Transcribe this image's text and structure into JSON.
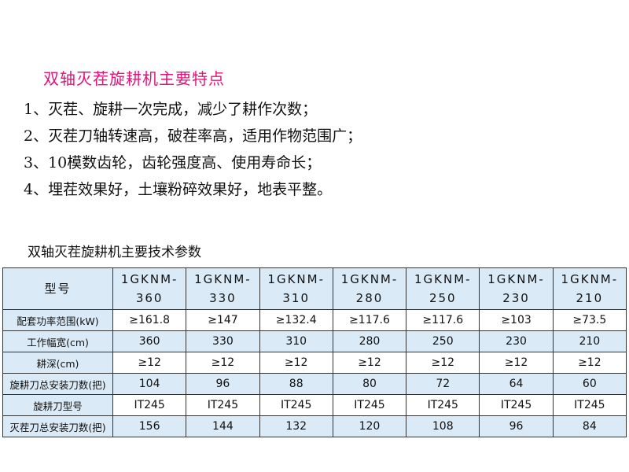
{
  "features_title": "双轴灭茬旋耕机主要特点",
  "features": [
    "1、灭茬、旋耕一次完成，减少了耕作次数；",
    "2、灭茬刀轴转速高，破茬率高，适用作物范围广；",
    "3、10模数齿轮，齿轮强度高、使用寿命长；",
    "4、埋茬效果好，土壤粉碎效果好，地表平整。"
  ],
  "table_title": "双轴灭茬旋耕机主要技术参数",
  "table": {
    "header_label": "型号",
    "models": [
      [
        "1GKNM-",
        "360"
      ],
      [
        "1GKNM-",
        "330"
      ],
      [
        "1GKNM-",
        "310"
      ],
      [
        "1GKNM-",
        "280"
      ],
      [
        "1GKNM-",
        "250"
      ],
      [
        "1GKNM-",
        "230"
      ],
      [
        "1GKNM-",
        "210"
      ]
    ],
    "rows": [
      {
        "label": "配套功率范围(kW)",
        "values": [
          "≥161.8",
          "≥147",
          "≥132.4",
          "≥117.6",
          "≥117.6",
          "≥103",
          "≥73.5"
        ]
      },
      {
        "label": "工作幅宽(cm)",
        "values": [
          "360",
          "330",
          "310",
          "280",
          "250",
          "230",
          "210"
        ]
      },
      {
        "label": "耕深(cm)",
        "values": [
          "≥12",
          "≥12",
          "≥12",
          "≥12",
          "≥12",
          "≥12",
          "≥12"
        ]
      },
      {
        "label": "旋耕刀总安装刀数(把)",
        "values": [
          "104",
          "96",
          "88",
          "80",
          "72",
          "64",
          "60"
        ]
      },
      {
        "label": "旋耕刀型号",
        "values": [
          "IT245",
          "IT245",
          "IT245",
          "IT245",
          "IT245",
          "IT245",
          "IT245"
        ]
      },
      {
        "label": "灭茬刀总安装刀数(把)",
        "values": [
          "156",
          "144",
          "132",
          "120",
          "108",
          "96",
          "84"
        ]
      }
    ]
  },
  "colors": {
    "title": "#e0157a",
    "header_bg": "#daeaf7",
    "border": "#333333"
  }
}
